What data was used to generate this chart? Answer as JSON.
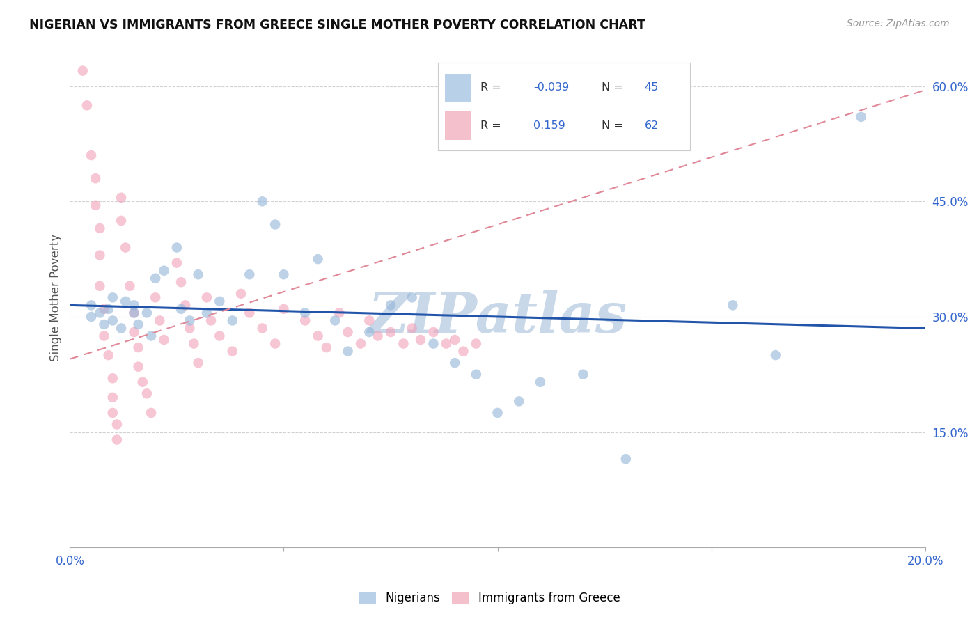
{
  "title": "NIGERIAN VS IMMIGRANTS FROM GREECE SINGLE MOTHER POVERTY CORRELATION CHART",
  "source": "Source: ZipAtlas.com",
  "ylabel": "Single Mother Poverty",
  "xlim": [
    0.0,
    0.2
  ],
  "ylim": [
    0.0,
    0.65
  ],
  "xticks": [
    0.0,
    0.05,
    0.1,
    0.15,
    0.2
  ],
  "xticklabels": [
    "0.0%",
    "",
    "",
    "",
    "20.0%"
  ],
  "ytick_positions": [
    0.15,
    0.3,
    0.45,
    0.6
  ],
  "ytick_labels": [
    "15.0%",
    "30.0%",
    "45.0%",
    "60.0%"
  ],
  "legend_labels": [
    "Nigerians",
    "Immigrants from Greece"
  ],
  "blue_dot_color": "#92b4d8",
  "pink_dot_color": "#f0a0b8",
  "blue_line_color": "#2255aa",
  "pink_line_color": "#e08898",
  "blue_legend_color": "#b8d0e8",
  "pink_legend_color": "#f4c0cc",
  "watermark": "ZIPatlas",
  "watermark_color": "#c8d8e8",
  "blue_R": -0.039,
  "blue_N": 45,
  "pink_R": 0.159,
  "pink_N": 62,
  "blue_line_y0": 0.315,
  "blue_line_y1": 0.285,
  "pink_line_y0": 0.245,
  "pink_line_y1": 0.595,
  "blue_scatter_x": [
    0.005,
    0.005,
    0.007,
    0.008,
    0.009,
    0.01,
    0.01,
    0.012,
    0.013,
    0.015,
    0.015,
    0.016,
    0.018,
    0.019,
    0.02,
    0.022,
    0.025,
    0.026,
    0.028,
    0.03,
    0.032,
    0.035,
    0.038,
    0.042,
    0.045,
    0.048,
    0.05,
    0.055,
    0.058,
    0.062,
    0.065,
    0.07,
    0.075,
    0.08,
    0.085,
    0.09,
    0.095,
    0.1,
    0.105,
    0.11,
    0.12,
    0.13,
    0.155,
    0.165,
    0.185
  ],
  "blue_scatter_y": [
    0.315,
    0.3,
    0.305,
    0.29,
    0.31,
    0.325,
    0.295,
    0.285,
    0.32,
    0.305,
    0.315,
    0.29,
    0.305,
    0.275,
    0.35,
    0.36,
    0.39,
    0.31,
    0.295,
    0.355,
    0.305,
    0.32,
    0.295,
    0.355,
    0.45,
    0.42,
    0.355,
    0.305,
    0.375,
    0.295,
    0.255,
    0.28,
    0.315,
    0.325,
    0.265,
    0.24,
    0.225,
    0.175,
    0.19,
    0.215,
    0.225,
    0.115,
    0.315,
    0.25,
    0.56
  ],
  "pink_scatter_x": [
    0.003,
    0.004,
    0.005,
    0.006,
    0.006,
    0.007,
    0.007,
    0.007,
    0.008,
    0.008,
    0.009,
    0.01,
    0.01,
    0.01,
    0.011,
    0.011,
    0.012,
    0.012,
    0.013,
    0.014,
    0.015,
    0.015,
    0.016,
    0.016,
    0.017,
    0.018,
    0.019,
    0.02,
    0.021,
    0.022,
    0.025,
    0.026,
    0.027,
    0.028,
    0.029,
    0.03,
    0.032,
    0.033,
    0.035,
    0.038,
    0.04,
    0.042,
    0.045,
    0.048,
    0.05,
    0.055,
    0.058,
    0.06,
    0.063,
    0.065,
    0.068,
    0.07,
    0.072,
    0.075,
    0.078,
    0.08,
    0.082,
    0.085,
    0.088,
    0.09,
    0.092,
    0.095
  ],
  "pink_scatter_y": [
    0.62,
    0.575,
    0.51,
    0.48,
    0.445,
    0.415,
    0.38,
    0.34,
    0.31,
    0.275,
    0.25,
    0.22,
    0.195,
    0.175,
    0.16,
    0.14,
    0.455,
    0.425,
    0.39,
    0.34,
    0.305,
    0.28,
    0.26,
    0.235,
    0.215,
    0.2,
    0.175,
    0.325,
    0.295,
    0.27,
    0.37,
    0.345,
    0.315,
    0.285,
    0.265,
    0.24,
    0.325,
    0.295,
    0.275,
    0.255,
    0.33,
    0.305,
    0.285,
    0.265,
    0.31,
    0.295,
    0.275,
    0.26,
    0.305,
    0.28,
    0.265,
    0.295,
    0.275,
    0.28,
    0.265,
    0.285,
    0.27,
    0.28,
    0.265,
    0.27,
    0.255,
    0.265
  ]
}
